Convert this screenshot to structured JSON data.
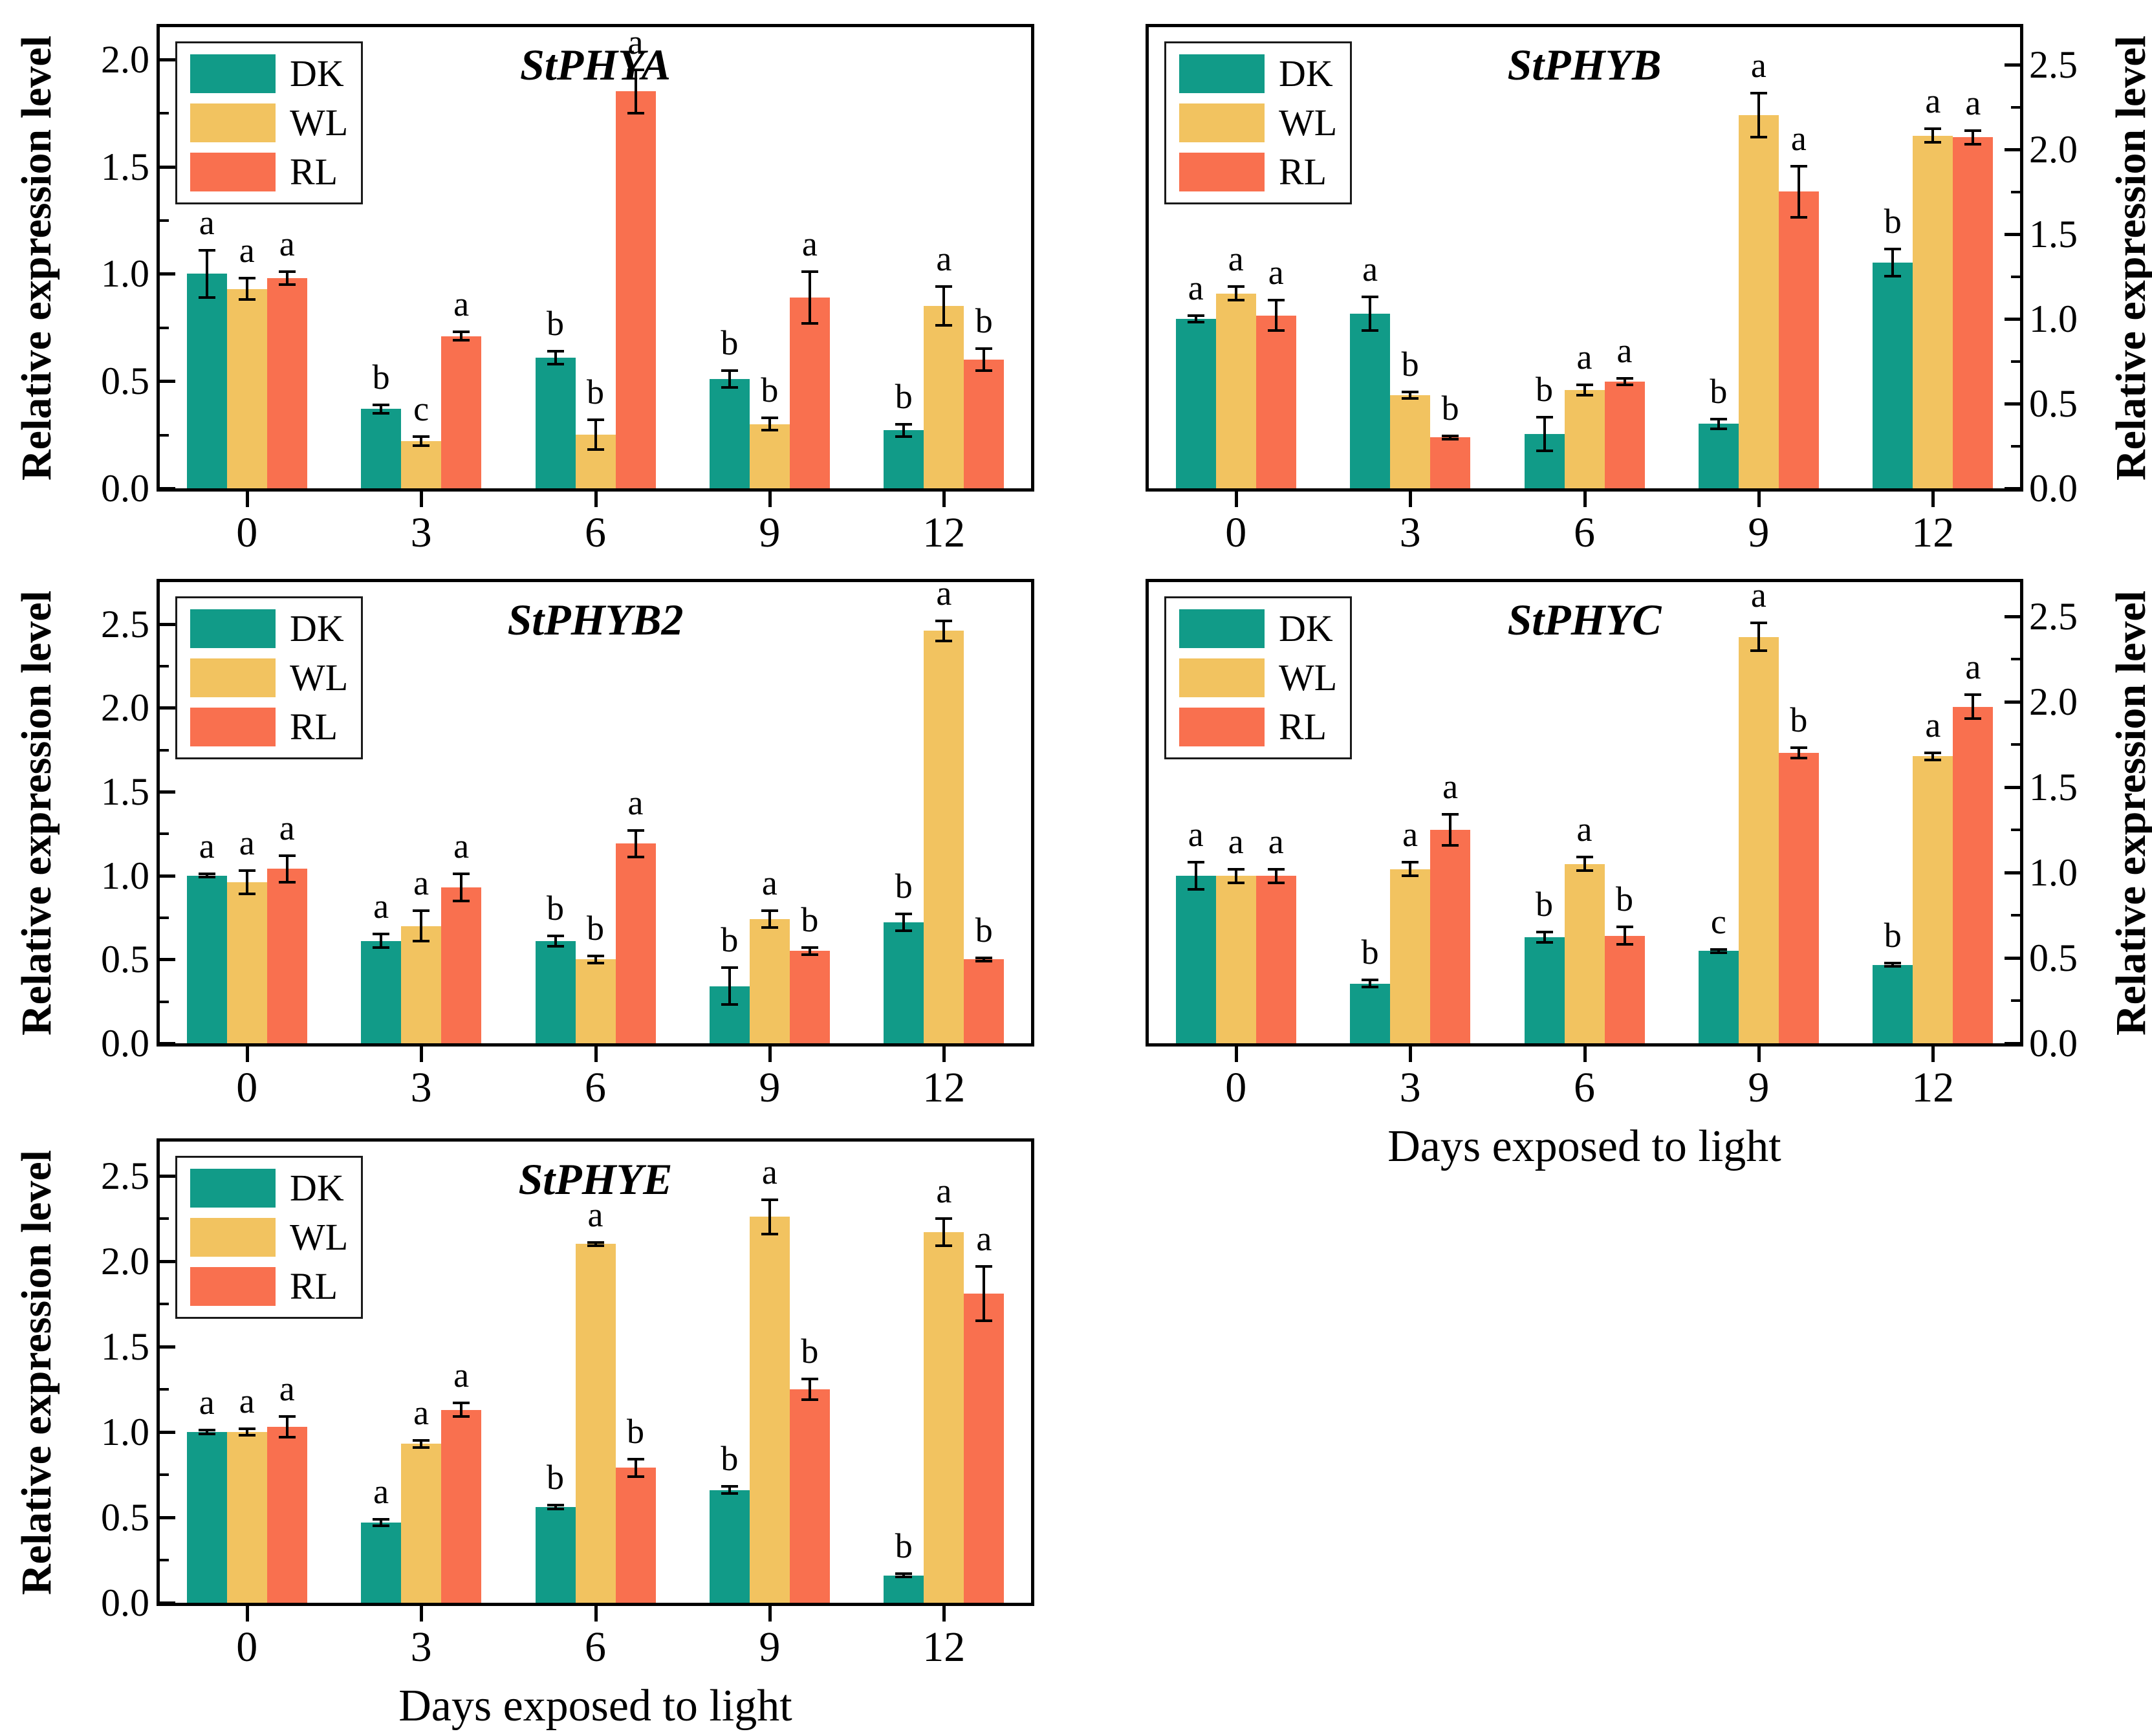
{
  "figure": {
    "background": "#ffffff",
    "axis_color": "#000000",
    "ylabel": "Relative expression level",
    "xlabel": "Days exposed to light",
    "legend": {
      "items": [
        {
          "label": "DK",
          "color": "#119B88"
        },
        {
          "label": "WL",
          "color": "#F2C360"
        },
        {
          "label": "RL",
          "color": "#F9704F"
        }
      ]
    }
  },
  "chart_data": [
    {
      "type": "bar",
      "title": "StPHYA",
      "axis_side": "left",
      "show_xlabel": false,
      "categories": [
        "0",
        "3",
        "6",
        "9",
        "12"
      ],
      "ytick_labels": [
        "0.0",
        "0.5",
        "1.0",
        "1.5",
        "2.0"
      ],
      "yticks": [
        0.0,
        0.5,
        1.0,
        1.5,
        2.0
      ],
      "ymax": 2.15,
      "series": [
        {
          "name": "DK",
          "values": [
            1.0,
            0.37,
            0.61,
            0.51,
            0.27
          ],
          "errors": [
            0.11,
            0.02,
            0.03,
            0.04,
            0.03
          ],
          "letters": [
            "a",
            "b",
            "b",
            "b",
            "b"
          ]
        },
        {
          "name": "WL",
          "values": [
            0.93,
            0.22,
            0.25,
            0.3,
            0.85
          ],
          "errors": [
            0.05,
            0.02,
            0.07,
            0.03,
            0.09
          ],
          "letters": [
            "a",
            "c",
            "b",
            "b",
            "a"
          ]
        },
        {
          "name": "RL",
          "values": [
            0.98,
            0.71,
            1.85,
            0.89,
            0.6
          ],
          "errors": [
            0.03,
            0.02,
            0.1,
            0.12,
            0.05
          ],
          "letters": [
            "a",
            "a",
            "a",
            "a",
            "b"
          ]
        }
      ]
    },
    {
      "type": "bar",
      "title": "StPHYB",
      "axis_side": "right",
      "show_xlabel": false,
      "categories": [
        "0",
        "3",
        "6",
        "9",
        "12"
      ],
      "ytick_labels": [
        "0.0",
        "0.5",
        "1.0",
        "1.5",
        "2.0",
        "2.5"
      ],
      "yticks": [
        0.0,
        0.5,
        1.0,
        1.5,
        2.0,
        2.5
      ],
      "ymax": 2.72,
      "series": [
        {
          "name": "DK",
          "values": [
            1.0,
            1.03,
            0.32,
            0.38,
            1.33
          ],
          "errors": [
            0.02,
            0.1,
            0.1,
            0.03,
            0.08
          ],
          "letters": [
            "a",
            "a",
            "b",
            "b",
            "b"
          ]
        },
        {
          "name": "WL",
          "values": [
            1.15,
            0.55,
            0.58,
            2.2,
            2.08
          ],
          "errors": [
            0.04,
            0.02,
            0.03,
            0.13,
            0.04
          ],
          "letters": [
            "a",
            "b",
            "a",
            "a",
            "a"
          ]
        },
        {
          "name": "RL",
          "values": [
            1.02,
            0.3,
            0.63,
            1.75,
            2.07
          ],
          "errors": [
            0.09,
            0.01,
            0.02,
            0.15,
            0.04
          ],
          "letters": [
            "a",
            "b",
            "a",
            "a",
            "a"
          ]
        }
      ]
    },
    {
      "type": "bar",
      "title": "StPHYB2",
      "axis_side": "left",
      "show_xlabel": false,
      "categories": [
        "0",
        "3",
        "6",
        "9",
        "12"
      ],
      "ytick_labels": [
        "0.0",
        "0.5",
        "1.0",
        "1.5",
        "2.0",
        "2.5"
      ],
      "yticks": [
        0.0,
        0.5,
        1.0,
        1.5,
        2.0,
        2.5
      ],
      "ymax": 2.75,
      "series": [
        {
          "name": "DK",
          "values": [
            1.0,
            0.61,
            0.61,
            0.34,
            0.72
          ],
          "errors": [
            0.01,
            0.04,
            0.03,
            0.11,
            0.05
          ],
          "letters": [
            "a",
            "a",
            "b",
            "b",
            "b"
          ]
        },
        {
          "name": "WL",
          "values": [
            0.96,
            0.7,
            0.5,
            0.74,
            2.46
          ],
          "errors": [
            0.07,
            0.09,
            0.02,
            0.05,
            0.06
          ],
          "letters": [
            "a",
            "a",
            "b",
            "a",
            "a"
          ]
        },
        {
          "name": "RL",
          "values": [
            1.04,
            0.93,
            1.19,
            0.55,
            0.5
          ],
          "errors": [
            0.08,
            0.08,
            0.08,
            0.02,
            0.01
          ],
          "letters": [
            "a",
            "a",
            "a",
            "b",
            "b"
          ]
        }
      ]
    },
    {
      "type": "bar",
      "title": "StPHYC",
      "axis_side": "right",
      "show_xlabel": true,
      "categories": [
        "0",
        "3",
        "6",
        "9",
        "12"
      ],
      "ytick_labels": [
        "0.0",
        "0.5",
        "1.0",
        "1.5",
        "2.0",
        "2.5"
      ],
      "yticks": [
        0.0,
        0.5,
        1.0,
        1.5,
        2.0,
        2.5
      ],
      "ymax": 2.7,
      "series": [
        {
          "name": "DK",
          "values": [
            0.98,
            0.35,
            0.62,
            0.54,
            0.46
          ],
          "errors": [
            0.08,
            0.02,
            0.03,
            0.01,
            0.01
          ],
          "letters": [
            "a",
            "b",
            "b",
            "c",
            "b"
          ]
        },
        {
          "name": "WL",
          "values": [
            0.98,
            1.02,
            1.05,
            2.38,
            1.68
          ],
          "errors": [
            0.04,
            0.04,
            0.04,
            0.08,
            0.02
          ],
          "letters": [
            "a",
            "a",
            "a",
            "a",
            "a"
          ]
        },
        {
          "name": "RL",
          "values": [
            0.98,
            1.25,
            0.63,
            1.7,
            1.97
          ],
          "errors": [
            0.04,
            0.09,
            0.05,
            0.03,
            0.07
          ],
          "letters": [
            "a",
            "a",
            "b",
            "b",
            "a"
          ]
        }
      ]
    },
    {
      "type": "bar",
      "title": "StPHYE",
      "axis_side": "left",
      "show_xlabel": true,
      "categories": [
        "0",
        "3",
        "6",
        "9",
        "12"
      ],
      "ytick_labels": [
        "0.0",
        "0.5",
        "1.0",
        "1.5",
        "2.0",
        "2.5"
      ],
      "yticks": [
        0.0,
        0.5,
        1.0,
        1.5,
        2.0,
        2.5
      ],
      "ymax": 2.7,
      "series": [
        {
          "name": "DK",
          "values": [
            1.0,
            0.47,
            0.56,
            0.66,
            0.16
          ],
          "errors": [
            0.01,
            0.02,
            0.01,
            0.02,
            0.01
          ],
          "letters": [
            "a",
            "a",
            "b",
            "b",
            "b"
          ]
        },
        {
          "name": "WL",
          "values": [
            1.0,
            0.93,
            2.1,
            2.26,
            2.17
          ],
          "errors": [
            0.02,
            0.02,
            0.01,
            0.1,
            0.08
          ],
          "letters": [
            "a",
            "a",
            "a",
            "a",
            "a"
          ]
        },
        {
          "name": "RL",
          "values": [
            1.03,
            1.13,
            0.79,
            1.25,
            1.81
          ],
          "errors": [
            0.06,
            0.04,
            0.05,
            0.06,
            0.16
          ],
          "letters": [
            "a",
            "a",
            "b",
            "b",
            "a"
          ]
        }
      ]
    }
  ]
}
